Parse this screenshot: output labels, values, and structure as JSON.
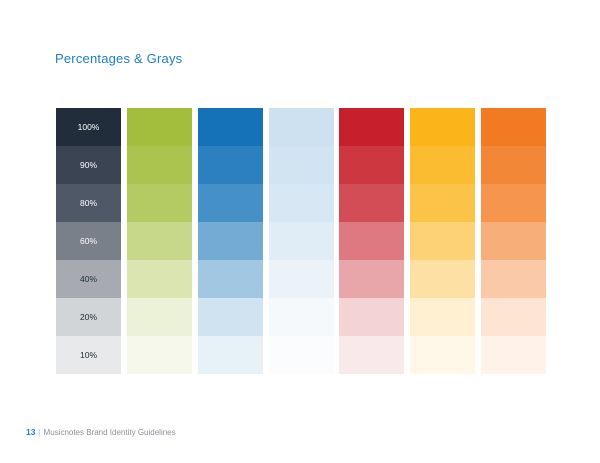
{
  "title": "Percentages & Grays",
  "levels": [
    "100%",
    "90%",
    "80%",
    "60%",
    "40%",
    "20%",
    "10%"
  ],
  "gray_label_colors": [
    "#ffffff",
    "#ffffff",
    "#ffffff",
    "#ffffff",
    "#222d3b",
    "#222d3b",
    "#222d3b"
  ],
  "palettes": [
    {
      "name": "gray",
      "colors": [
        "#222d3b",
        "#3a4452",
        "#4f5866",
        "#7a8089",
        "#a7abb1",
        "#d2d5d8",
        "#e8e9eb"
      ]
    },
    {
      "name": "green",
      "colors": [
        "#a2be3c",
        "#abc44f",
        "#b4ca63",
        "#c7d88a",
        "#dae5b1",
        "#ecf2d8",
        "#f5f8eb"
      ]
    },
    {
      "name": "blue",
      "colors": [
        "#1572b9",
        "#2d80c0",
        "#4490c7",
        "#73abd5",
        "#a2c7e3",
        "#d0e3f1",
        "#e7f1f8"
      ]
    },
    {
      "name": "light-blue",
      "colors": [
        "#cde1f0",
        "#d2e4f2",
        "#d7e7f3",
        "#e1edf6",
        "#ebf3f9",
        "#f5f9fc",
        "#fafcfe"
      ]
    },
    {
      "name": "red",
      "colors": [
        "#c8202a",
        "#cd3740",
        "#d24d55",
        "#de7a7f",
        "#e9a6aa",
        "#f4d3d4",
        "#f9e9ea"
      ]
    },
    {
      "name": "yellow",
      "colors": [
        "#fbb41a",
        "#fbbc31",
        "#fcc349",
        "#fdd276",
        "#fde1a4",
        "#fef0d1",
        "#fff7e8"
      ]
    },
    {
      "name": "orange",
      "colors": [
        "#f27a22",
        "#f38738",
        "#f5954e",
        "#f7af7a",
        "#fac9a7",
        "#fde4d3",
        "#fef2e9"
      ]
    }
  ],
  "footer": {
    "page_number": "13",
    "separator": "|",
    "text": "Musicnotes Brand Identity Guidelines"
  }
}
